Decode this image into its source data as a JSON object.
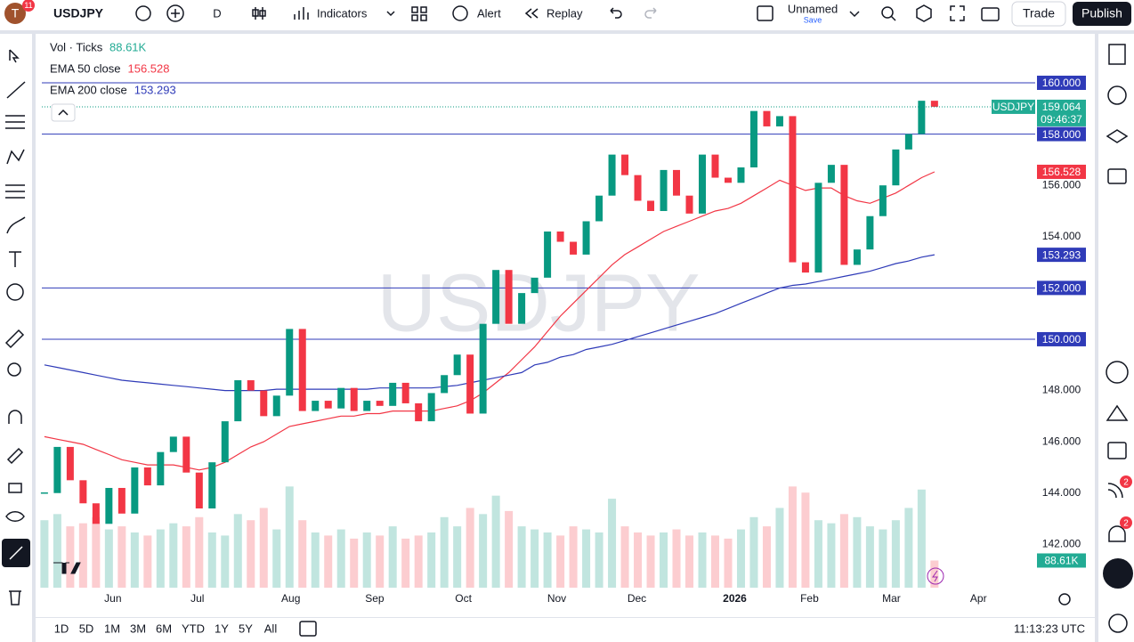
{
  "header": {
    "avatar": "T",
    "avatar_badge": "11",
    "symbol": "USDJPY",
    "interval": "D",
    "indicators": "Indicators",
    "alert": "Alert",
    "replay": "Replay",
    "layout_name": "Unnamed",
    "layout_save": "Save",
    "trade": "Trade",
    "publish": "Publish"
  },
  "chart_data": {
    "type": "candlestick",
    "watermark": "USDJPY",
    "close": [
      144.0,
      145.8,
      144.5,
      143.6,
      142.8,
      144.2,
      143.2,
      145.0,
      144.3,
      145.6,
      146.2,
      144.8,
      143.4,
      145.2,
      146.8,
      148.4,
      148.0,
      147.0,
      147.8,
      150.4,
      147.2,
      147.6,
      147.3,
      148.1,
      147.2,
      147.6,
      147.4,
      148.3,
      147.5,
      146.8,
      147.9,
      148.6,
      149.4,
      147.1,
      150.6,
      152.7,
      150.6,
      151.8,
      152.4,
      154.2,
      153.8,
      153.3,
      154.6,
      155.6,
      157.2,
      156.4,
      155.4,
      155.0,
      156.6,
      155.6,
      154.9,
      157.2,
      156.3,
      156.1,
      156.7,
      158.9,
      158.3,
      158.7,
      153.0,
      152.6,
      156.1,
      156.8,
      152.9,
      153.5,
      154.8,
      156.0,
      157.4,
      158.0,
      159.3,
      159.064
    ],
    "volume": [
      220,
      240,
      200,
      210,
      230,
      190,
      200,
      180,
      170,
      190,
      210,
      200,
      230,
      180,
      170,
      240,
      220,
      260,
      190,
      330,
      220,
      180,
      170,
      190,
      160,
      180,
      170,
      200,
      160,
      170,
      180,
      230,
      200,
      260,
      240,
      300,
      250,
      200,
      190,
      180,
      170,
      200,
      190,
      180,
      290,
      200,
      180,
      170,
      180,
      190,
      170,
      180,
      170,
      160,
      190,
      230,
      200,
      260,
      330,
      310,
      220,
      210,
      240,
      230,
      200,
      190,
      220,
      260,
      320,
      88.61
    ],
    "volume_legend": {
      "name": "Vol · Ticks",
      "label": "88.61K"
    },
    "volume_ylim": [
      0,
      1800
    ],
    "series": [
      {
        "name": "EMA 50 close",
        "color": "#f23645",
        "last_label": "156.528",
        "values": [
          146.2,
          146.1,
          146.0,
          145.9,
          145.7,
          145.5,
          145.3,
          145.2,
          145.1,
          145.1,
          145.1,
          145.0,
          144.9,
          145.0,
          145.2,
          145.5,
          145.8,
          146.0,
          146.3,
          146.6,
          146.7,
          146.8,
          146.9,
          147.0,
          147.0,
          147.1,
          147.1,
          147.2,
          147.2,
          147.2,
          147.2,
          147.3,
          147.4,
          147.6,
          147.9,
          148.3,
          148.7,
          149.2,
          149.7,
          150.3,
          150.9,
          151.4,
          151.9,
          152.4,
          152.9,
          153.3,
          153.6,
          153.9,
          154.2,
          154.4,
          154.6,
          154.8,
          155.0,
          155.1,
          155.3,
          155.6,
          155.9,
          156.2,
          156.0,
          155.8,
          155.9,
          155.9,
          155.6,
          155.4,
          155.3,
          155.5,
          155.7,
          156.0,
          156.3,
          156.528
        ]
      },
      {
        "name": "EMA 200 close",
        "color": "#2f3bb8",
        "last_label": "153.293",
        "values": [
          149.0,
          148.9,
          148.8,
          148.7,
          148.6,
          148.5,
          148.4,
          148.35,
          148.3,
          148.25,
          148.2,
          148.15,
          148.1,
          148.05,
          148.0,
          148.0,
          148.0,
          148.0,
          148.05,
          148.05,
          148.05,
          148.05,
          148.05,
          148.05,
          148.05,
          148.05,
          148.1,
          148.1,
          148.1,
          148.1,
          148.1,
          148.15,
          148.2,
          148.3,
          148.4,
          148.5,
          148.6,
          148.7,
          149.0,
          149.1,
          149.3,
          149.4,
          149.6,
          149.7,
          149.8,
          149.95,
          150.1,
          150.25,
          150.4,
          150.55,
          150.7,
          150.85,
          151.0,
          151.2,
          151.4,
          151.6,
          151.8,
          152.0,
          152.1,
          152.15,
          152.25,
          152.35,
          152.45,
          152.55,
          152.65,
          152.8,
          152.95,
          153.05,
          153.2,
          153.293
        ]
      }
    ],
    "last_price": {
      "symbol": "USDJPY",
      "label": "159.064",
      "countdown": "09:46:37"
    },
    "ylim": [
      140.31,
      161.84
    ],
    "yticks": [
      {
        "value": 142,
        "label": "142.000"
      },
      {
        "value": 144,
        "label": "144.000"
      },
      {
        "value": 146,
        "label": "146.000"
      },
      {
        "value": 148,
        "label": "148.000"
      },
      {
        "value": 154,
        "label": "154.000"
      },
      {
        "value": 156,
        "label": "156.000"
      }
    ],
    "hlines": [
      {
        "value": 160,
        "label": "160.000"
      },
      {
        "value": 158,
        "label": "158.000"
      },
      {
        "value": 152,
        "label": "152.000"
      },
      {
        "value": 150,
        "label": "150.000"
      }
    ],
    "xlim": [
      -0.2,
      76.6
    ],
    "xticks": [
      {
        "value": 5.31,
        "label": "Jun"
      },
      {
        "value": 11.86,
        "label": "Jul"
      },
      {
        "value": 19.1,
        "label": "Aug"
      },
      {
        "value": 25.6,
        "label": "Sep"
      },
      {
        "value": 32.48,
        "label": "Oct"
      },
      {
        "value": 39.72,
        "label": "Nov"
      },
      {
        "value": 45.93,
        "label": "Dec"
      },
      {
        "value": 53.52,
        "label": "2026"
      },
      {
        "value": 59.31,
        "label": "Feb"
      },
      {
        "value": 65.66,
        "label": "Mar"
      },
      {
        "value": 72.41,
        "label": "Apr"
      }
    ]
  },
  "footer": {
    "ranges": [
      "1D",
      "5D",
      "1M",
      "3M",
      "6M",
      "YTD",
      "1Y",
      "5Y",
      "All"
    ],
    "clock": "11:13:23 UTC"
  },
  "sidebar": {
    "badges": [
      "2",
      "2"
    ]
  }
}
